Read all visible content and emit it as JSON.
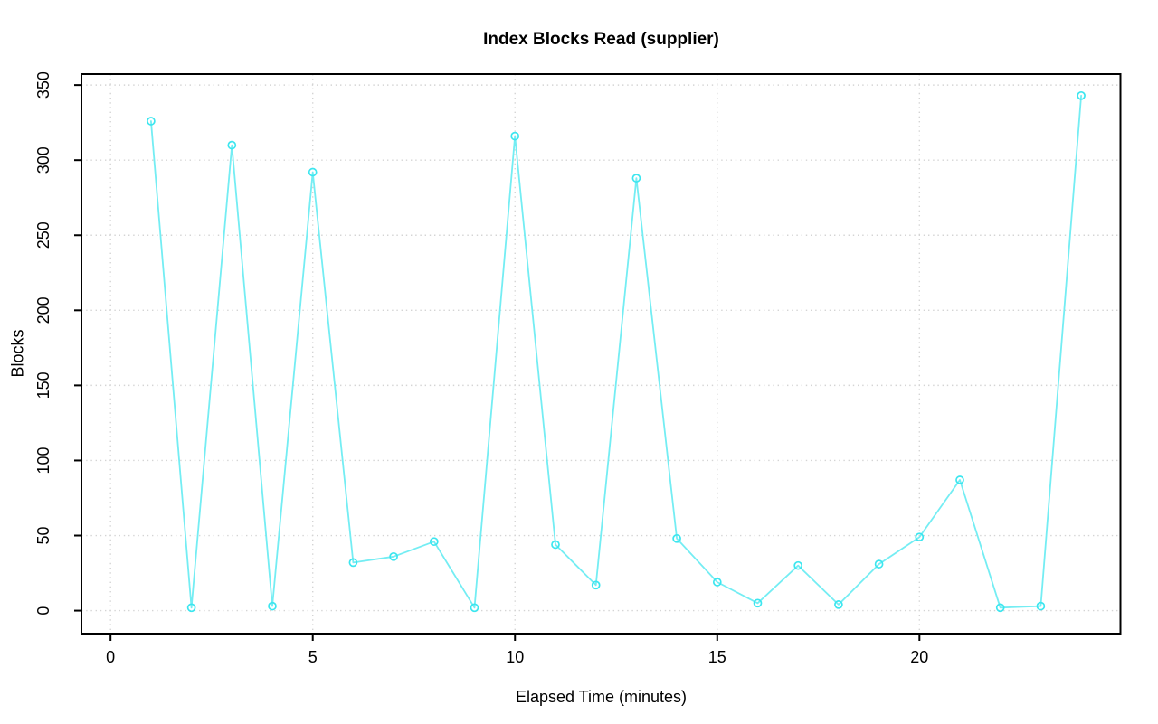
{
  "chart": {
    "title": "Index Blocks Read (supplier)",
    "xlabel": "Elapsed Time (minutes)",
    "ylabel": "Blocks"
  },
  "chart_data": {
    "type": "line",
    "title": "Index Blocks Read (supplier)",
    "xlabel": "Elapsed Time (minutes)",
    "ylabel": "Blocks",
    "x": [
      1,
      2,
      3,
      4,
      5,
      6,
      7,
      8,
      9,
      10,
      11,
      12,
      13,
      14,
      15,
      16,
      17,
      18,
      19,
      20,
      21,
      22,
      23,
      24
    ],
    "y": [
      326,
      2,
      310,
      3,
      292,
      32,
      36,
      46,
      2,
      316,
      44,
      17,
      288,
      48,
      19,
      5,
      30,
      4,
      31,
      49,
      87,
      2,
      3,
      343
    ],
    "series": [
      {
        "name": "index blocks read",
        "values": [
          326,
          2,
          310,
          3,
          292,
          32,
          36,
          46,
          2,
          316,
          44,
          17,
          288,
          48,
          19,
          5,
          30,
          4,
          31,
          49,
          87,
          2,
          3,
          343
        ]
      }
    ],
    "x_ticks": [
      0,
      5,
      10,
      15,
      20
    ],
    "y_ticks": [
      0,
      50,
      100,
      150,
      200,
      250,
      300,
      350
    ],
    "xlim": [
      -0.72,
      24.97
    ],
    "ylim": [
      -15.3,
      357.3
    ],
    "grid": true,
    "grid_style": "dotted",
    "grid_color": "#d4d4d4",
    "marker": "open-circle",
    "line_color": "#74edf3",
    "marker_color": "#3ce6ef",
    "box_color": "#000000",
    "background": "#ffffff",
    "legend": null
  }
}
